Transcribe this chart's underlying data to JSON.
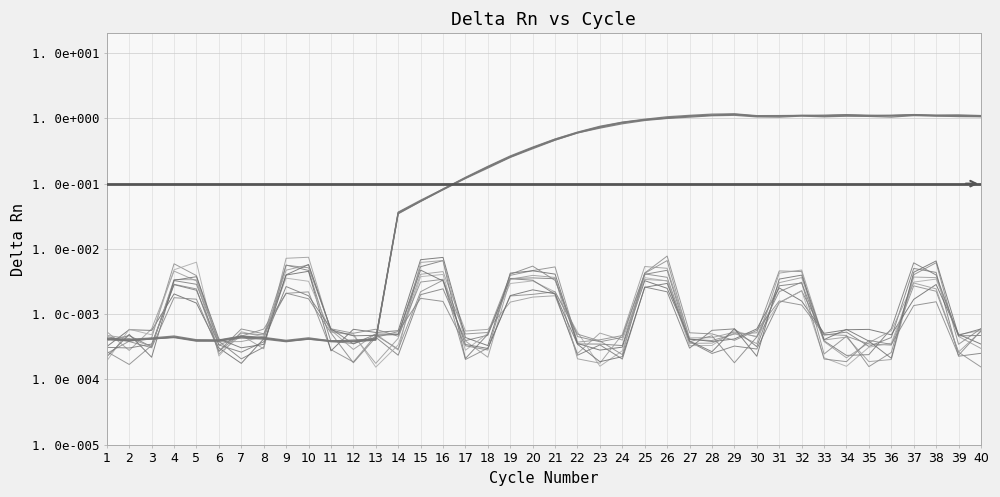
{
  "title": "Delta Rn vs Cycle",
  "xlabel": "Cycle Number",
  "ylabel": "Delta Rn",
  "xlim": [
    1,
    40
  ],
  "threshold_y": 0.1,
  "ytick_labels": [
    "1. 0e+001",
    "1. 0e+000",
    "1. 0e-001",
    "1. 0e-002",
    "1. 0c-003",
    "1. 0e 004",
    "1. 0e-005"
  ],
  "ytick_values": [
    10.0,
    1.0,
    0.1,
    0.01,
    0.001,
    0.0001,
    1e-05
  ],
  "bg_color": "#f0f0f0",
  "plot_bg_color": "#f8f8f8",
  "grid_color": "#cccccc",
  "grid_color_v": "#d8d8d8",
  "line_color": "#888888",
  "line_color2": "#999999",
  "line_color3": "#aaaaaa",
  "threshold_color": "#555555",
  "title_fontsize": 13,
  "axis_label_fontsize": 11,
  "tick_fontsize": 9
}
